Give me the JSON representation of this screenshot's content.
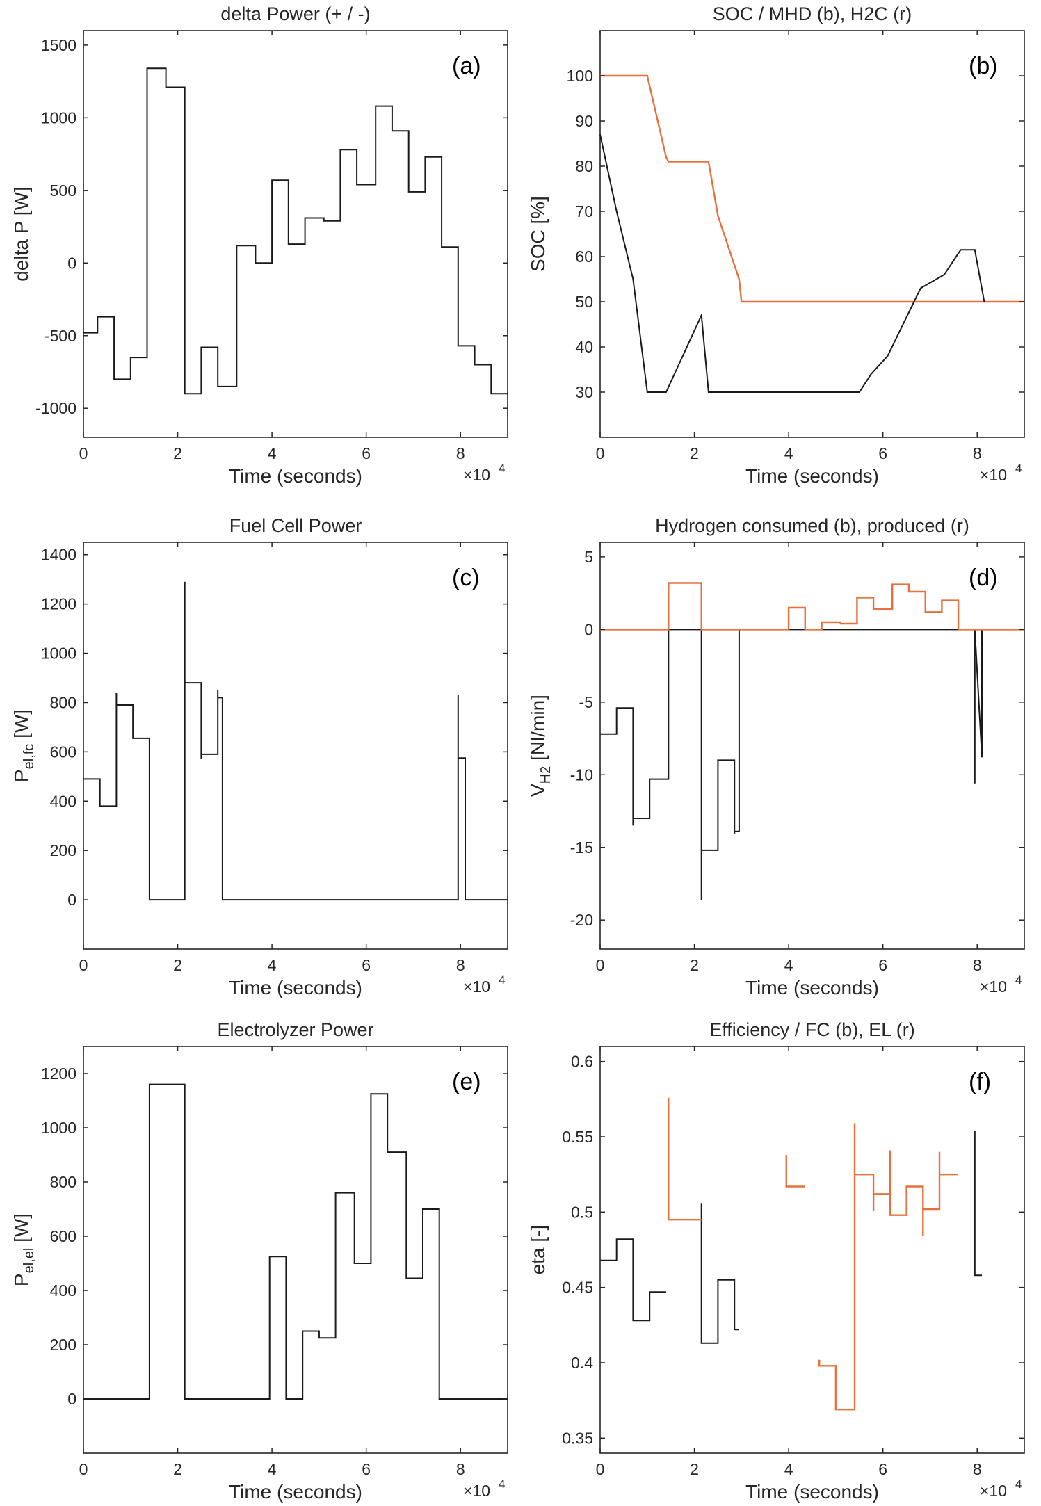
{
  "colors": {
    "b": "#1a1a1a",
    "r": "#e8703a",
    "axis": "#262626"
  },
  "chart_data": [
    {
      "id": "a",
      "type": "line",
      "title": "delta Power (+ / -)",
      "panel_label": "(a)",
      "xlabel": "Time (seconds)",
      "ylabel": "delta P [W]",
      "x_multiplier": "×10",
      "x_exponent": "4",
      "xlim": [
        0,
        9
      ],
      "ylim": [
        -1200,
        1600
      ],
      "xticks": [
        "0",
        "2",
        "4",
        "6",
        "8"
      ],
      "yticks": [
        "-1000",
        "-500",
        "0",
        "500",
        "1000",
        "1500"
      ],
      "series": [
        {
          "color": "b",
          "x": [
            0,
            0.3,
            0.3,
            0.65,
            0.65,
            1.0,
            1.0,
            1.35,
            1.35,
            1.75,
            1.75,
            2.15,
            2.15,
            2.5,
            2.5,
            2.85,
            2.85,
            3.25,
            3.25,
            3.65,
            3.65,
            4.0,
            4.0,
            4.35,
            4.35,
            4.7,
            4.7,
            5.1,
            5.1,
            5.45,
            5.45,
            5.8,
            5.8,
            6.2,
            6.2,
            6.55,
            6.55,
            6.9,
            6.9,
            7.25,
            7.25,
            7.6,
            7.6,
            7.95,
            7.95,
            8.3,
            8.3,
            8.65,
            8.65,
            9.0
          ],
          "y": [
            -480,
            -480,
            -370,
            -370,
            -800,
            -800,
            -650,
            -650,
            1340,
            1340,
            1210,
            1210,
            -900,
            -900,
            -580,
            -580,
            -850,
            -850,
            120,
            120,
            0,
            0,
            570,
            570,
            130,
            130,
            310,
            310,
            290,
            290,
            780,
            780,
            540,
            540,
            1080,
            1080,
            910,
            910,
            490,
            490,
            730,
            730,
            110,
            110,
            -570,
            -570,
            -700,
            -700,
            -900,
            -900
          ]
        }
      ]
    },
    {
      "id": "b",
      "type": "line",
      "title": "SOC / MHD (b), H2C (r)",
      "panel_label": "(b)",
      "xlabel": "Time (seconds)",
      "ylabel": "SOC [%]",
      "x_multiplier": "×10",
      "x_exponent": "4",
      "xlim": [
        0,
        9
      ],
      "ylim": [
        20,
        110
      ],
      "xticks": [
        "0",
        "2",
        "4",
        "6",
        "8"
      ],
      "yticks": [
        "30",
        "40",
        "50",
        "60",
        "70",
        "80",
        "90",
        "100"
      ],
      "series": [
        {
          "color": "r",
          "x": [
            0,
            1.0,
            1.4,
            1.45,
            2.3,
            2.5,
            2.95,
            3.0,
            9.0
          ],
          "y": [
            100,
            100,
            82,
            81,
            81,
            69,
            55,
            50,
            50
          ]
        },
        {
          "color": "b",
          "x": [
            0,
            0.35,
            0.7,
            1.0,
            1.4,
            2.15,
            2.3,
            5.5,
            5.75,
            6.1,
            6.8,
            7.3,
            7.65,
            7.95,
            8.15
          ],
          "y": [
            87,
            70,
            55,
            30,
            30,
            47,
            30,
            30,
            34,
            38,
            53,
            56,
            61.5,
            61.5,
            50
          ]
        }
      ]
    },
    {
      "id": "c",
      "type": "line",
      "title": "Fuel Cell Power",
      "panel_label": "(c)",
      "xlabel": "Time (seconds)",
      "ylabel": "P",
      "ylabel_sub": "el,fc",
      "ylabel_unit": " [W]",
      "x_multiplier": "×10",
      "x_exponent": "4",
      "xlim": [
        0,
        9
      ],
      "ylim": [
        -200,
        1450
      ],
      "xticks": [
        "0",
        "2",
        "4",
        "6",
        "8"
      ],
      "yticks": [
        "0",
        "200",
        "400",
        "600",
        "800",
        "1000",
        "1200",
        "1400"
      ],
      "series": [
        {
          "color": "b",
          "x": [
            0,
            0.35,
            0.35,
            0.7,
            0.7,
            0.7,
            0.7,
            1.05,
            1.05,
            1.4,
            1.4,
            2.15,
            2.15,
            2.15,
            2.15,
            2.5,
            2.5,
            2.5,
            2.5,
            2.85,
            2.85,
            2.85,
            2.85,
            2.95,
            2.95,
            7.95,
            7.95,
            7.95,
            7.95,
            8.1,
            8.1,
            9.0
          ],
          "y": [
            490,
            490,
            380,
            380,
            840,
            380,
            790,
            790,
            655,
            655,
            0,
            0,
            1290,
            0,
            880,
            880,
            570,
            880,
            590,
            590,
            850,
            590,
            820,
            820,
            0,
            0,
            830,
            0,
            575,
            575,
            0,
            0
          ]
        }
      ]
    },
    {
      "id": "d",
      "type": "line",
      "title": "Hydrogen consumed (b),  produced (r)",
      "panel_label": "(d)",
      "xlabel": "Time (seconds)",
      "ylabel": "V",
      "ylabel_sub": "H2",
      "ylabel_unit": " [Nl/min]",
      "x_multiplier": "×10",
      "x_exponent": "4",
      "xlim": [
        0,
        9
      ],
      "ylim": [
        -22,
        6
      ],
      "xticks": [
        "0",
        "2",
        "4",
        "6",
        "8"
      ],
      "yticks": [
        "-20",
        "-15",
        "-10",
        "-5",
        "0",
        "5"
      ],
      "series": [
        {
          "color": "b",
          "x": [
            0,
            0.35,
            0.35,
            0.7,
            0.7,
            0.7,
            0.7,
            1.05,
            1.05,
            1.45,
            1.45,
            2.15,
            2.15,
            2.15,
            2.15,
            2.5,
            2.5,
            2.85,
            2.85,
            2.85,
            2.85,
            2.95,
            2.95,
            9.0
          ],
          "y": [
            -7.2,
            -7.2,
            -5.4,
            -5.4,
            -13.5,
            -5.4,
            -13.0,
            -13.0,
            -10.3,
            -10.3,
            0,
            0,
            -18.6,
            0,
            -15.2,
            -15.2,
            -9.0,
            -9.0,
            -14.1,
            -9.0,
            -13.9,
            -13.9,
            0,
            0
          ]
        },
        {
          "color": "b",
          "x": [
            7.95,
            7.95,
            7.95,
            8.1,
            8.1
          ],
          "y": [
            0,
            -10.6,
            0,
            -8.8,
            0
          ]
        },
        {
          "color": "r",
          "x": [
            0,
            1.45,
            1.45,
            2.15,
            2.15,
            4.0,
            4.0,
            4.35,
            4.35,
            4.7,
            4.7,
            5.1,
            5.1,
            5.45,
            5.45,
            5.8,
            5.8,
            6.2,
            6.2,
            6.55,
            6.55,
            6.9,
            6.9,
            7.25,
            7.25,
            7.6,
            7.6,
            9.0
          ],
          "y": [
            0,
            0,
            3.2,
            3.2,
            0,
            0,
            1.5,
            1.5,
            0,
            0,
            0.5,
            0.5,
            0.4,
            0.4,
            2.2,
            2.2,
            1.4,
            1.4,
            3.1,
            3.1,
            2.6,
            2.6,
            1.2,
            1.2,
            2.0,
            2.0,
            0,
            0
          ]
        }
      ]
    },
    {
      "id": "e",
      "type": "line",
      "title": "Electrolyzer Power",
      "panel_label": "(e)",
      "xlabel": "Time (seconds)",
      "ylabel": "P",
      "ylabel_sub": "el,el",
      "ylabel_unit": " [W]",
      "x_multiplier": "×10",
      "x_exponent": "4",
      "xlim": [
        0,
        9
      ],
      "ylim": [
        -200,
        1300
      ],
      "xticks": [
        "0",
        "2",
        "4",
        "6",
        "8"
      ],
      "yticks": [
        "0",
        "200",
        "400",
        "600",
        "800",
        "1000",
        "1200"
      ],
      "series": [
        {
          "color": "b",
          "x": [
            0,
            1.4,
            1.4,
            2.15,
            2.15,
            3.95,
            3.95,
            4.3,
            4.3,
            4.65,
            4.65,
            5.0,
            5.0,
            5.35,
            5.35,
            5.75,
            5.75,
            6.1,
            6.1,
            6.45,
            6.45,
            6.85,
            6.85,
            7.2,
            7.2,
            7.55,
            7.55,
            9.0
          ],
          "y": [
            0,
            0,
            1160,
            1160,
            0,
            0,
            525,
            525,
            0,
            0,
            250,
            250,
            225,
            225,
            760,
            760,
            500,
            500,
            1125,
            1125,
            910,
            910,
            445,
            445,
            700,
            700,
            0,
            0
          ]
        }
      ]
    },
    {
      "id": "f",
      "type": "line",
      "title": "Efficiency / FC (b), EL (r)",
      "panel_label": "(f)",
      "xlabel": "Time (seconds)",
      "ylabel": "eta [-]",
      "x_multiplier": "×10",
      "x_exponent": "4",
      "xlim": [
        0,
        9
      ],
      "ylim": [
        0.34,
        0.61
      ],
      "xticks": [
        "0",
        "2",
        "4",
        "6",
        "8"
      ],
      "yticks": [
        "0.35",
        "0.4",
        "0.45",
        "0.5",
        "0.55",
        "0.6"
      ],
      "series": [
        {
          "color": "b",
          "x": [
            0,
            0.35,
            0.35,
            0.7,
            0.7,
            1.05,
            1.05,
            1.4
          ],
          "y": [
            0.468,
            0.468,
            0.482,
            0.482,
            0.428,
            0.428,
            0.447,
            0.447
          ]
        },
        {
          "color": "b",
          "x": [
            2.15,
            2.15,
            2.5,
            2.5,
            2.85,
            2.85,
            2.95
          ],
          "y": [
            0.506,
            0.413,
            0.413,
            0.455,
            0.455,
            0.422,
            0.422
          ]
        },
        {
          "color": "b",
          "x": [
            7.95,
            7.95,
            8.1
          ],
          "y": [
            0.554,
            0.458,
            0.458
          ]
        },
        {
          "color": "r",
          "x": [
            1.45,
            1.45,
            2.15
          ],
          "y": [
            0.576,
            0.495,
            0.495
          ]
        },
        {
          "color": "r",
          "x": [
            3.95,
            3.95,
            4.35
          ],
          "y": [
            0.538,
            0.517,
            0.517
          ]
        },
        {
          "color": "r",
          "x": [
            4.65,
            4.65,
            5.0,
            5.0,
            5.4,
            5.4,
            5.4,
            5.8,
            5.8,
            5.8,
            6.15,
            6.15,
            6.15,
            6.5,
            6.5,
            6.85,
            6.85,
            6.85,
            7.2,
            7.2,
            7.2,
            7.6
          ],
          "y": [
            0.402,
            0.398,
            0.398,
            0.369,
            0.369,
            0.559,
            0.525,
            0.525,
            0.501,
            0.512,
            0.512,
            0.541,
            0.498,
            0.498,
            0.517,
            0.517,
            0.484,
            0.502,
            0.502,
            0.54,
            0.525,
            0.525
          ]
        }
      ]
    }
  ]
}
